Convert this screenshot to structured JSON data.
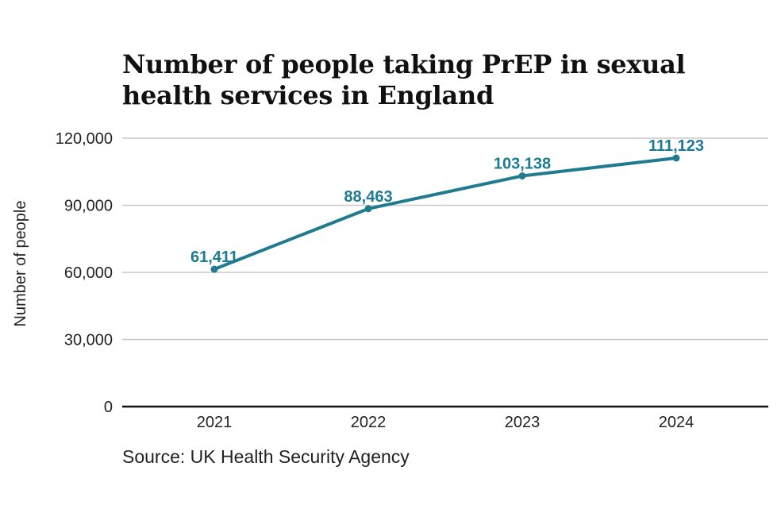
{
  "chart_data": {
    "type": "line",
    "title": "Number of people taking PrEP in sexual health services in England",
    "xlabel": "",
    "ylabel": "Number of people",
    "categories": [
      "2021",
      "2022",
      "2023",
      "2024"
    ],
    "series": [
      {
        "name": "People taking PrEP",
        "values": [
          61411,
          88463,
          103138,
          111123
        ],
        "labels": [
          "61,411",
          "88,463",
          "103,138",
          "111,123"
        ]
      }
    ],
    "ylim": [
      0,
      120000
    ],
    "yticks": [
      0,
      30000,
      60000,
      90000,
      120000
    ],
    "ytick_labels": [
      "0",
      "30,000",
      "60,000",
      "90,000",
      "120,000"
    ],
    "grid": true,
    "legend": "none"
  },
  "source": "Source: UK Health Security Agency",
  "colors": {
    "series": "#217b8f",
    "label": "#1d7a94",
    "grid": "#c8c8c8",
    "baseline": "#111111"
  }
}
